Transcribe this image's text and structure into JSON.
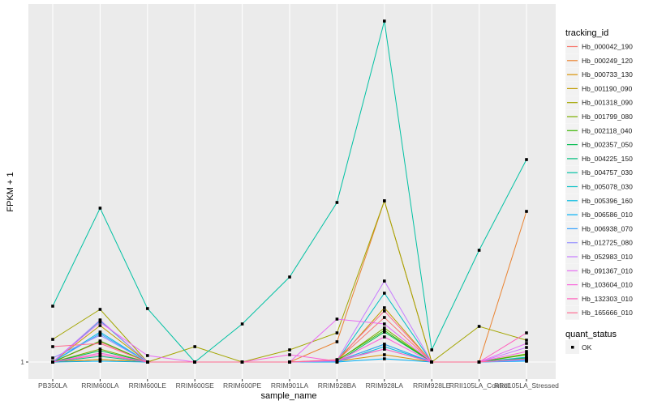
{
  "chart_data": {
    "type": "line",
    "title": "",
    "xlabel": "sample_name",
    "ylabel": "FPKM + 1",
    "y_ticks": [
      "1"
    ],
    "y_tick_values": [
      1
    ],
    "ylim": [
      -1.1,
      45.2
    ],
    "y_units_note": "relative scale, baseline tick at 1",
    "grid": true,
    "legend_placement": "right",
    "categories": [
      "PB350LA",
      "RRIM600LA",
      "RRIM600LE",
      "RRIM600SE",
      "RRIM600PE",
      "RRIM901LA",
      "RRIM928BA",
      "RRIM928LA",
      "RRIM928LE",
      "RRII105LA_Control",
      "RRII105LA_Stressed"
    ],
    "legend_title": "tracking_id",
    "series": [
      {
        "name": "Hb_000042_190",
        "color": "#F8766D",
        "values": [
          1,
          3.5,
          1,
          1,
          1,
          1,
          1.2,
          6.5,
          1,
          1,
          1.4
        ]
      },
      {
        "name": "Hb_000249_120",
        "color": "#EA8331",
        "values": [
          1,
          1.3,
          1,
          1,
          1,
          1,
          3.5,
          20.9,
          1,
          1,
          19.6
        ]
      },
      {
        "name": "Hb_000733_130",
        "color": "#D89000",
        "values": [
          1,
          1.3,
          1,
          1,
          1,
          1,
          1.1,
          1.9,
          1,
          1,
          1.4
        ]
      },
      {
        "name": "Hb_001190_090",
        "color": "#C09B00",
        "values": [
          1,
          5.5,
          1,
          1,
          1,
          1,
          1.1,
          7.7,
          1,
          1,
          1.5
        ]
      },
      {
        "name": "Hb_001318_090",
        "color": "#A3A500",
        "values": [
          3.8,
          7.5,
          1,
          2.9,
          1,
          2.5,
          4.6,
          20.9,
          1,
          5.4,
          3.7
        ]
      },
      {
        "name": "Hb_001799_080",
        "color": "#7CAE00",
        "values": [
          1,
          2.6,
          1,
          1,
          1,
          1,
          1.1,
          5.2,
          1,
          1,
          2.0
        ]
      },
      {
        "name": "Hb_002118_040",
        "color": "#39B600",
        "values": [
          1,
          3.6,
          1,
          1,
          1,
          1,
          1.2,
          4.9,
          1,
          1,
          1.9
        ]
      },
      {
        "name": "Hb_002357_050",
        "color": "#00BB4E",
        "values": [
          1,
          2.4,
          1,
          1,
          1,
          1,
          1,
          4.7,
          1,
          1,
          1.5
        ]
      },
      {
        "name": "Hb_004225_150",
        "color": "#00BF7D",
        "values": [
          1,
          1.7,
          1,
          1,
          1,
          1,
          1.1,
          3.2,
          1,
          1,
          1.3
        ]
      },
      {
        "name": "Hb_004757_030",
        "color": "#00C1A3",
        "values": [
          7.9,
          20,
          7.6,
          1,
          5.7,
          11.5,
          20.7,
          43.1,
          2.5,
          14.8,
          26
        ]
      },
      {
        "name": "Hb_005078_030",
        "color": "#00BFC4",
        "values": [
          1,
          6.1,
          1,
          1,
          1,
          1,
          1.1,
          9.5,
          1,
          1,
          1.6
        ]
      },
      {
        "name": "Hb_005396_160",
        "color": "#00BAE0",
        "values": [
          1,
          4.7,
          1,
          1,
          1,
          1,
          1,
          2.9,
          1,
          1,
          1.2
        ]
      },
      {
        "name": "Hb_006586_010",
        "color": "#00B0F6",
        "values": [
          1,
          1.1,
          1,
          1,
          1,
          1,
          1,
          1.4,
          1,
          1,
          1.1
        ]
      },
      {
        "name": "Hb_006938_070",
        "color": "#35A2FF",
        "values": [
          1,
          4.5,
          1,
          1,
          1,
          1,
          1.1,
          3.2,
          1,
          1,
          1.3
        ]
      },
      {
        "name": "Hb_012725_080",
        "color": "#9590FF",
        "values": [
          1.5,
          4.3,
          1,
          1,
          1,
          1,
          1.1,
          2.6,
          1,
          1,
          1.2
        ]
      },
      {
        "name": "Hb_052983_010",
        "color": "#C77CFF",
        "values": [
          1,
          6.2,
          1,
          1,
          1,
          1,
          1.2,
          11,
          1,
          1,
          2.8
        ]
      },
      {
        "name": "Hb_091367_010",
        "color": "#E76BF3",
        "values": [
          1,
          5.9,
          1.8,
          1,
          1,
          1,
          6.3,
          5.7,
          1,
          1,
          3.3
        ]
      },
      {
        "name": "Hb_103604_010",
        "color": "#FA62DB",
        "values": [
          1,
          2.1,
          1,
          1,
          1,
          1.9,
          1.1,
          4.1,
          1,
          1,
          2.3
        ]
      },
      {
        "name": "Hb_132303_010",
        "color": "#FF62BC",
        "values": [
          1,
          1.9,
          1,
          1,
          1,
          1,
          1.2,
          2.6,
          1,
          1,
          4.6
        ]
      },
      {
        "name": "Hb_165666_010",
        "color": "#FF6C91",
        "values": [
          2.9,
          3.3,
          1,
          1,
          1,
          1,
          1.3,
          7.3,
          1,
          1,
          1.4
        ]
      }
    ],
    "shape_legend_title": "quant_status",
    "shape_legend_items": [
      "OK"
    ]
  }
}
